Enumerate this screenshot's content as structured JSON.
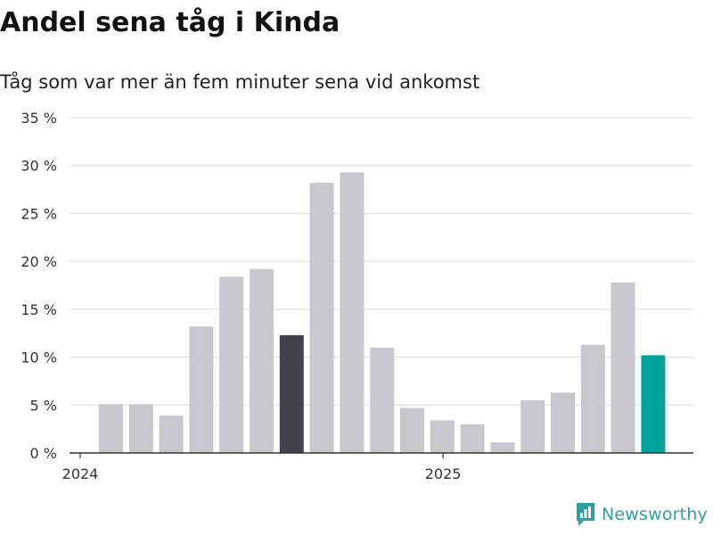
{
  "chart_data": {
    "type": "bar",
    "title": "Andel sena tåg i Kinda",
    "subtitle": "Tåg som var mer än fem minuter sena vid ankomst",
    "x_tick_labels": [
      "2024",
      "2025"
    ],
    "y_ticks": [
      0,
      5,
      10,
      15,
      20,
      25,
      30,
      35
    ],
    "y_tick_labels": [
      "0 %",
      "5 %",
      "10 %",
      "15 %",
      "20 %",
      "25 %",
      "30 %",
      "35 %"
    ],
    "ylim": [
      0,
      35
    ],
    "grid": true,
    "categories": [
      "2024-01",
      "2024-02",
      "2024-03",
      "2024-04",
      "2024-05",
      "2024-06",
      "2024-07",
      "2024-08",
      "2024-09",
      "2024-10",
      "2024-11",
      "2024-12",
      "2025-01",
      "2025-02",
      "2025-03",
      "2025-04",
      "2025-05",
      "2025-06",
      "2025-07",
      "2025-08"
    ],
    "values": [
      5.1,
      5.1,
      3.9,
      13.2,
      18.4,
      19.2,
      12.3,
      28.2,
      29.3,
      11.0,
      4.7,
      3.4,
      3.0,
      1.1,
      5.5,
      6.3,
      11.3,
      17.8,
      10.2,
      null
    ],
    "highlights": {
      "2024-07": "dark",
      "2025-07": "accent"
    }
  },
  "colors": {
    "bar_default": "#c8c7ce",
    "bar_dark": "#43414b",
    "bar_accent": "#00a49a",
    "grid": "#dddddd",
    "axis": "#333333",
    "tick_text": "#333333",
    "brand": "#2d9f9f"
  },
  "brand": {
    "name": "Newsworthy",
    "icon": "newsworthy-chart-icon"
  }
}
